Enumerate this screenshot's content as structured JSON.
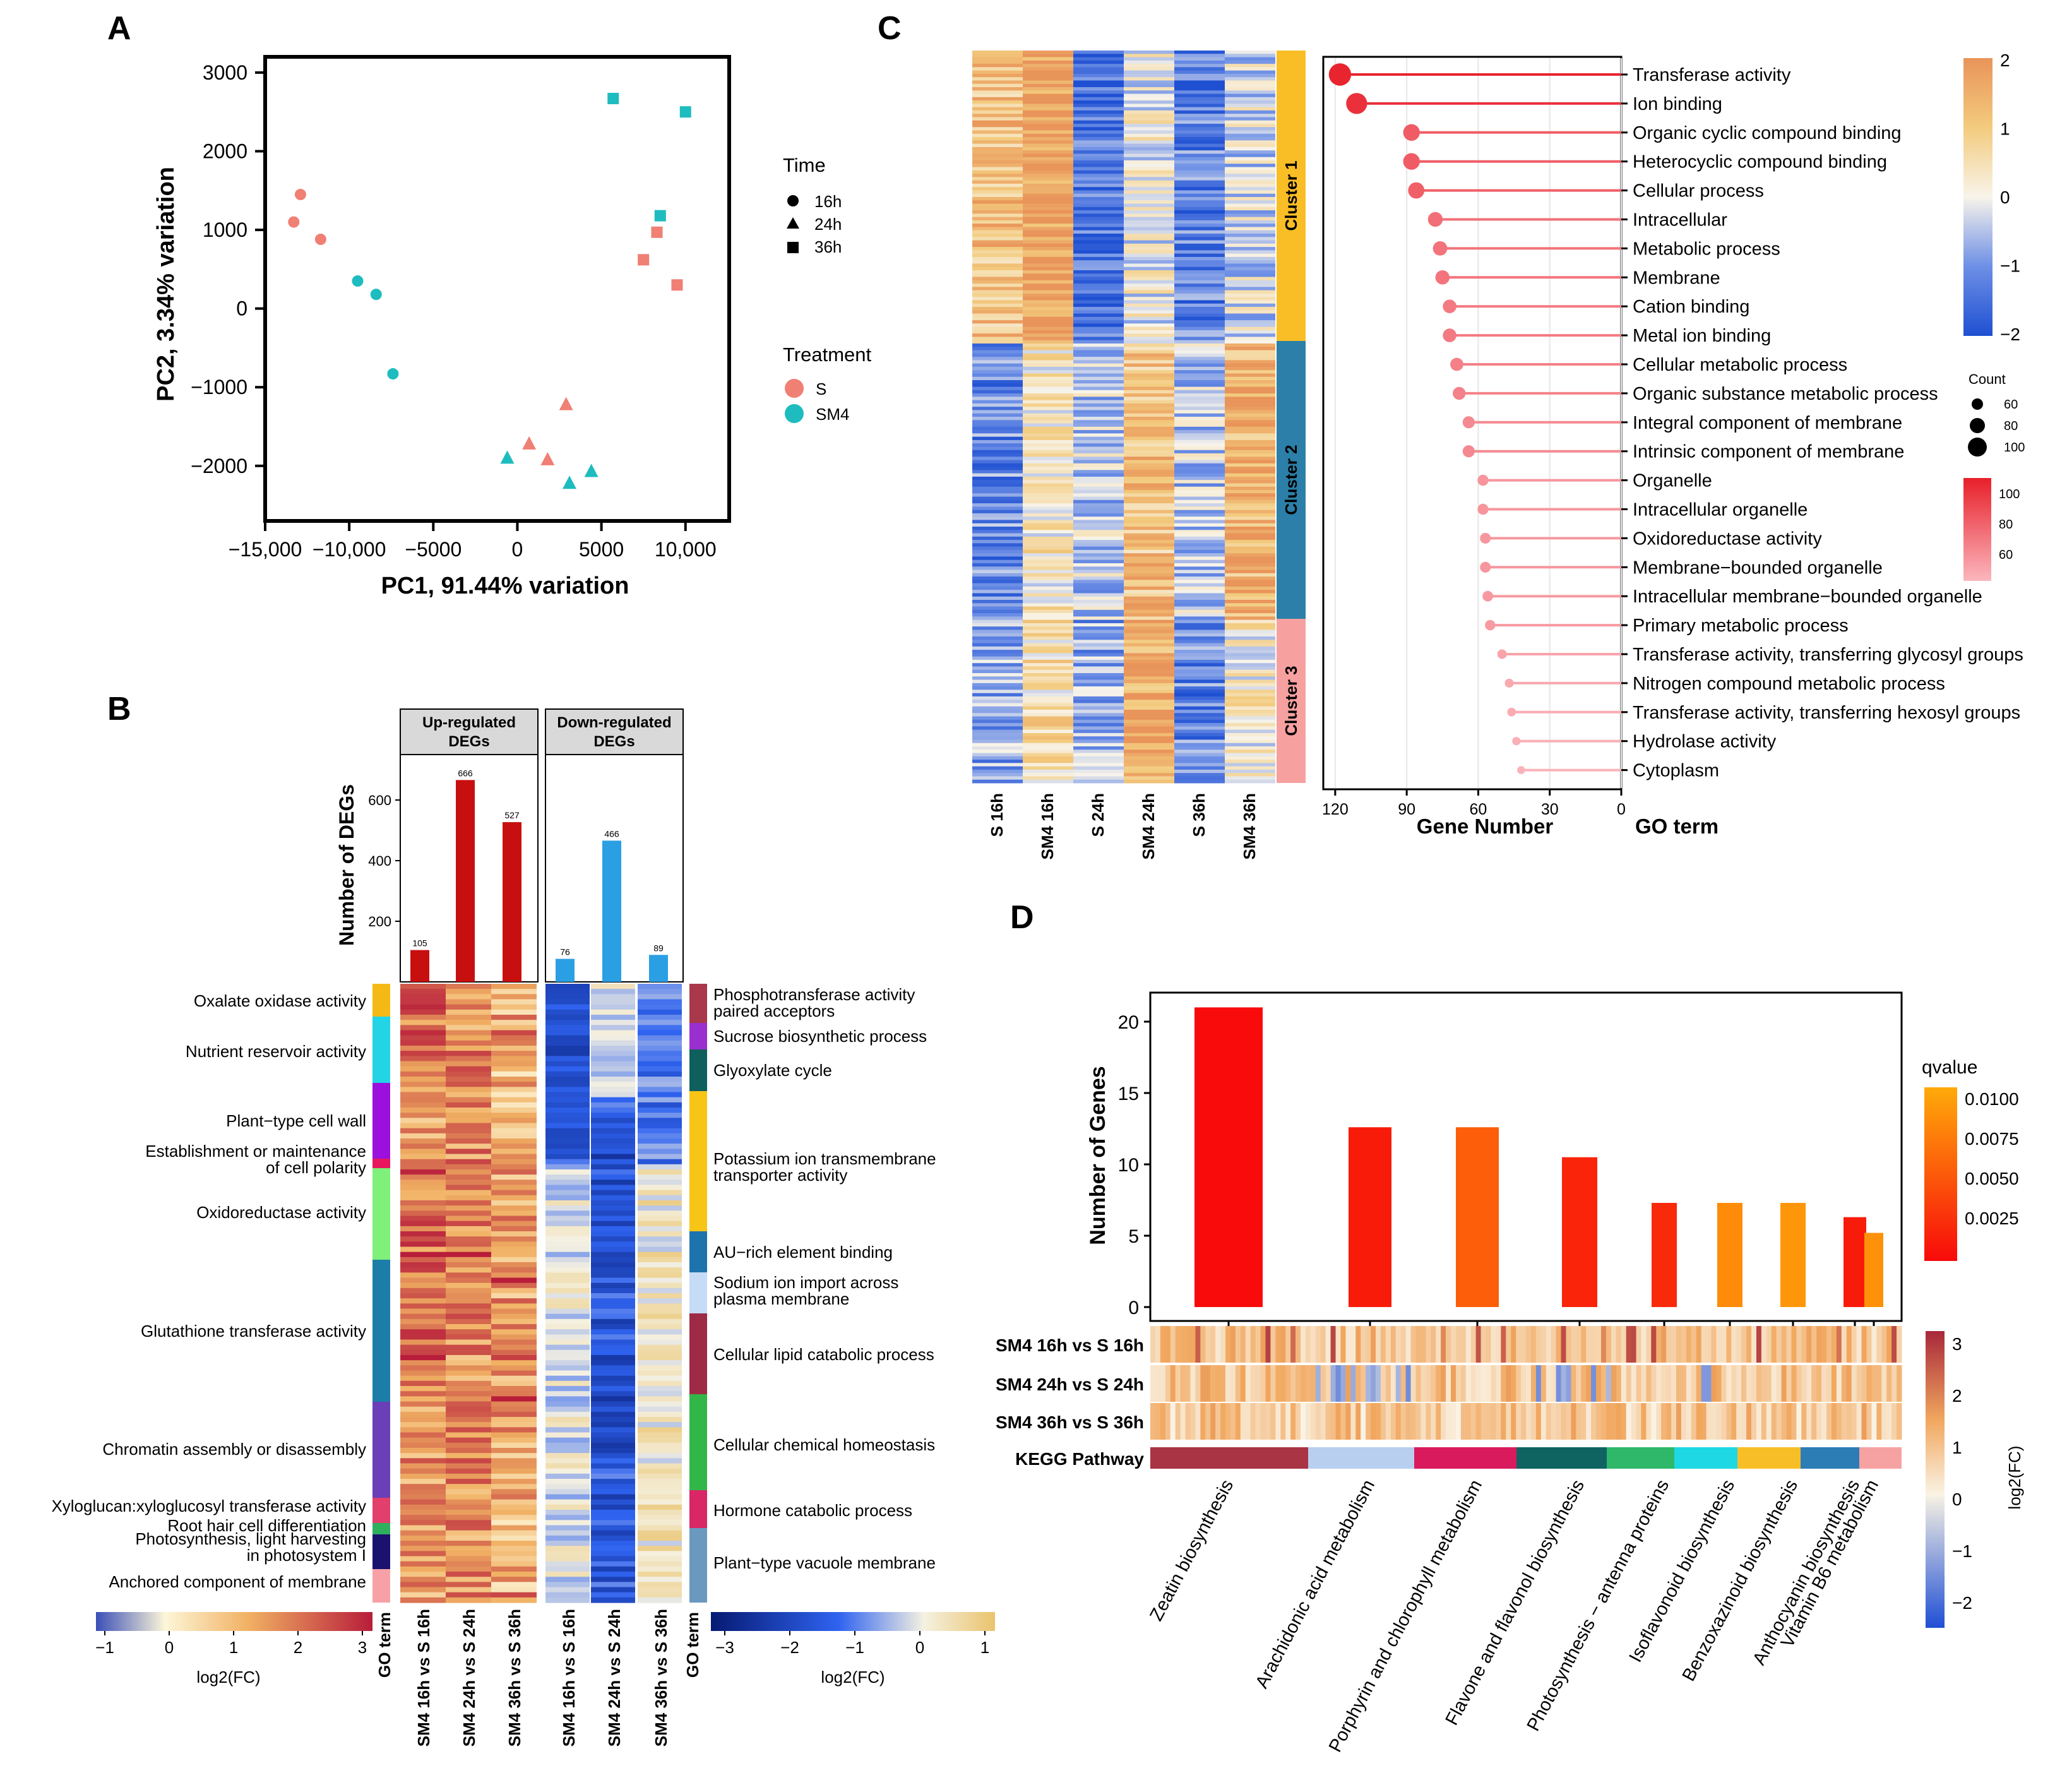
{
  "panels": {
    "a": "A",
    "b": "B",
    "c": "C",
    "d": "D"
  },
  "colors": {
    "S": "#f07f74",
    "SM4": "#1ebcbf",
    "up_bar": "#c80f0f",
    "down_bar": "#2b9fe3",
    "gene_lo": "#fbb1b8",
    "gene_hi": "#e8202a",
    "q_lo": "#f80a0a",
    "q_hi": "#ffa90a"
  },
  "chart_data": [
    {
      "id": "A",
      "type": "scatter",
      "xlabel": "PC1, 91.44% variation",
      "ylabel": "PC2, 3.34% variation",
      "xlim": [
        -15000,
        12600
      ],
      "ylim": [
        -2700,
        3200
      ],
      "xticks": [
        -15000,
        -10000,
        -5000,
        0,
        5000,
        10000
      ],
      "xtick_labels": [
        "−15,000",
        "−10,000",
        "−5000",
        "0",
        "5000",
        "10,000"
      ],
      "yticks": [
        -2000,
        -1000,
        0,
        1000,
        2000,
        3000
      ],
      "ytick_labels": [
        "−2000",
        "−1000",
        "0",
        "1000",
        "2000",
        "3000"
      ],
      "legend": {
        "time_title": "Time",
        "time": [
          {
            "label": "16h",
            "shape": "circle"
          },
          {
            "label": "24h",
            "shape": "triangle"
          },
          {
            "label": "36h",
            "shape": "square"
          }
        ],
        "treatment_title": "Treatment",
        "treatment": [
          {
            "label": "S",
            "color": "#f07f74"
          },
          {
            "label": "SM4",
            "color": "#1ebcbf"
          }
        ]
      },
      "points": [
        {
          "x": -12900,
          "y": 1450,
          "time": "16h",
          "trt": "S"
        },
        {
          "x": -13300,
          "y": 1100,
          "time": "16h",
          "trt": "S"
        },
        {
          "x": -11700,
          "y": 880,
          "time": "16h",
          "trt": "S"
        },
        {
          "x": -9500,
          "y": 350,
          "time": "16h",
          "trt": "SM4"
        },
        {
          "x": -8400,
          "y": 180,
          "time": "16h",
          "trt": "SM4"
        },
        {
          "x": -7400,
          "y": -830,
          "time": "16h",
          "trt": "SM4"
        },
        {
          "x": 2900,
          "y": -1220,
          "time": "24h",
          "trt": "S"
        },
        {
          "x": 700,
          "y": -1720,
          "time": "24h",
          "trt": "S"
        },
        {
          "x": 1800,
          "y": -1920,
          "time": "24h",
          "trt": "S"
        },
        {
          "x": -600,
          "y": -1900,
          "time": "24h",
          "trt": "SM4"
        },
        {
          "x": 4400,
          "y": -2070,
          "time": "24h",
          "trt": "SM4"
        },
        {
          "x": 3100,
          "y": -2220,
          "time": "24h",
          "trt": "SM4"
        },
        {
          "x": 5700,
          "y": 2670,
          "time": "36h",
          "trt": "SM4"
        },
        {
          "x": 10000,
          "y": 2500,
          "time": "36h",
          "trt": "SM4"
        },
        {
          "x": 8500,
          "y": 1180,
          "time": "36h",
          "trt": "SM4"
        },
        {
          "x": 8300,
          "y": 970,
          "time": "36h",
          "trt": "S"
        },
        {
          "x": 7500,
          "y": 620,
          "time": "36h",
          "trt": "S"
        },
        {
          "x": 9500,
          "y": 300,
          "time": "36h",
          "trt": "S"
        }
      ]
    },
    {
      "id": "B",
      "type": "bar",
      "ylabel": "Number of DEGs",
      "ylim": [
        0,
        750
      ],
      "yticks": [
        200,
        400,
        600
      ],
      "groups": [
        {
          "title_line1": "Up-regulated",
          "title_line2": "DEGs",
          "values": [
            105,
            666,
            527
          ],
          "value_labels": [
            "105",
            "666",
            "527"
          ],
          "color": "#c80f0f"
        },
        {
          "title_line1": "Down-regulated",
          "title_line2": "DEGs",
          "values": [
            76,
            466,
            89
          ],
          "value_labels": [
            "76",
            "466",
            "89"
          ],
          "color": "#2b9fe3"
        }
      ],
      "columns": [
        "SM4 16h vs S 16h",
        "SM4 24h vs S 24h",
        "SM4 36h vs S 36h"
      ],
      "go_axis_label": "GO term",
      "go_terms_left": [
        {
          "line1": "Oxalate oxidase activity",
          "line2": "",
          "color": "#f5b915"
        },
        {
          "line1": "Nutrient reservoir activity",
          "line2": "",
          "color": "#22d4e6"
        },
        {
          "line1": "Plant−type cell wall",
          "line2": "",
          "color": "#9b10dc"
        },
        {
          "line1": "Establishment or maintenance",
          "line2": "of cell polarity",
          "color": "#e8185e"
        },
        {
          "line1": "Oxidoreductase activity",
          "line2": "",
          "color": "#7ff07a"
        },
        {
          "line1": "Glutathione transferase activity",
          "line2": "",
          "color": "#1c7ea8"
        },
        {
          "line1": "Chromatin assembly or disassembly",
          "line2": "",
          "color": "#6a3fb8"
        },
        {
          "line1": "Xyloglucan:xyloglucosyl transferase activity",
          "line2": "",
          "color": "#e23f6c"
        },
        {
          "line1": "Root hair cell differentiation",
          "line2": "",
          "color": "#2fb05e"
        },
        {
          "line1": "Photosynthesis, light harvesting",
          "line2": "in photosystem I",
          "color": "#1b1270"
        },
        {
          "line1": "Anchored component of membrane",
          "line2": "",
          "color": "#f7a1a6"
        }
      ],
      "go_terms_right": [
        {
          "line1": "Phosphotransferase activity",
          "line2": "paired acceptors",
          "color": "#a8384a"
        },
        {
          "line1": "Sucrose biosynthetic process",
          "line2": "",
          "color": "#9a2fcf"
        },
        {
          "line1": "Glyoxylate cycle",
          "line2": "",
          "color": "#0f5f5d"
        },
        {
          "line1": "Potassium ion transmembrane",
          "line2": "transporter activity",
          "color": "#f6c515"
        },
        {
          "line1": "AU−rich element binding",
          "line2": "",
          "color": "#1d74ad"
        },
        {
          "line1": "Sodium ion import across",
          "line2": "plasma membrane",
          "color": "#c5dbf6"
        },
        {
          "line1": "Cellular lipid catabolic process",
          "line2": "",
          "color": "#9e2b45"
        },
        {
          "line1": "Cellular chemical homeostasis",
          "line2": "",
          "color": "#33b648"
        },
        {
          "line1": "Hormone catabolic process",
          "line2": "",
          "color": "#d92766"
        },
        {
          "line1": "Plant−type vacuole membrane",
          "line2": "",
          "color": "#6a99c0"
        }
      ],
      "scale_up": {
        "ticks": [
          "−1",
          "0",
          "1",
          "2",
          "3"
        ],
        "label": "log2(FC)"
      },
      "scale_down": {
        "ticks": [
          "−3",
          "−2",
          "−1",
          "0",
          "1"
        ],
        "label": "log2(FC)"
      }
    },
    {
      "id": "C",
      "type": "scatter",
      "heatmap_columns": [
        "S 16h",
        "SM4 16h",
        "S 24h",
        "SM4 24h",
        "S 36h",
        "SM4 36h"
      ],
      "clusters": [
        {
          "label": "Cluster 1",
          "color": "#f9be26"
        },
        {
          "label": "Cluster 2",
          "color": "#2b7fa8"
        },
        {
          "label": "Cluster 3",
          "color": "#f7a0a0"
        }
      ],
      "heat_scale": {
        "ticks": [
          "2",
          "1",
          "0",
          "−1",
          "−2"
        ]
      },
      "count_legend": {
        "title": "Count",
        "values": [
          60,
          80,
          100
        ],
        "labels": [
          "60",
          "80",
          "100"
        ]
      },
      "gene_legend": {
        "labels": [
          "100",
          "80",
          "60"
        ]
      },
      "xlabel": "Gene Number",
      "term_axis_label": "GO term",
      "xticks": [
        120,
        90,
        60,
        30,
        0
      ],
      "xtick_labels": [
        "120",
        "90",
        "60",
        "30",
        "0"
      ],
      "xlim": [
        125,
        0
      ],
      "terms": [
        "Transferase activity",
        "Ion binding",
        "Organic cyclic compound binding",
        "Heterocyclic compound binding",
        "Cellular process",
        "Intracellular",
        "Metabolic process",
        "Membrane",
        "Cation binding",
        "Metal ion binding",
        "Cellular metabolic process",
        "Organic substance metabolic process",
        "Integral component of membrane",
        "Intrinsic component of membrane",
        "Organelle",
        "Intracellular organelle",
        "Oxidoreductase activity",
        "Membrane−bounded organelle",
        "Intracellular membrane−bounded organelle",
        "Primary metabolic process",
        "Transferase activity, transferring glycosyl groups",
        "Nitrogen compound metabolic process",
        "Transferase activity, transferring hexosyl groups",
        "Hydrolase activity",
        "Cytoplasm"
      ],
      "values": [
        118,
        111,
        88,
        88,
        86,
        78,
        76,
        75,
        72,
        72,
        69,
        68,
        64,
        64,
        58,
        58,
        57,
        57,
        56,
        55,
        50,
        47,
        46,
        44,
        42
      ]
    },
    {
      "id": "D",
      "type": "bar",
      "ylabel": "Number of Genes",
      "ylim": [
        0,
        22.5
      ],
      "yticks": [
        0,
        5,
        10,
        15,
        20
      ],
      "ytick_labels": [
        "0",
        "5",
        "10",
        "15",
        "20"
      ],
      "categories": [
        "Zeatin biosynthesis",
        "Arachidonic acid metabolism",
        "Porphyrin and chlorophyll metabolism",
        "Flavone and flavonol biosynthesis",
        "Photosynthesis − antenna proteins",
        "Isoflavonoid biosynthesis",
        "Benzoxazinoid biosynthesis",
        "Anthocyanin biosynthesis",
        "Vitamin B6 metabolism"
      ],
      "values": [
        21,
        12.6,
        12.6,
        10.5,
        7.3,
        7.3,
        7.3,
        6.3,
        5.2
      ],
      "qvalues": [
        0.0001,
        0.0012,
        0.0058,
        0.0018,
        0.0022,
        0.0089,
        0.0096,
        0.0012,
        0.0093
      ],
      "qvalue_title": "qvalue",
      "q_ticks": [
        "0.0100",
        "0.0075",
        "0.0050",
        "0.0025"
      ],
      "heat_rows": [
        "SM4 16h vs S 16h",
        "SM4 24h vs S 24h",
        "SM4 36h vs S 36h"
      ],
      "pathway_row_label": "KEGG Pathway",
      "pathway_colors": [
        "#a83444",
        "#b8cff0",
        "#d91b5e",
        "#0f6462",
        "#2fb86a",
        "#1ed8e4",
        "#f7be27",
        "#2c7db5",
        "#f7a2a2"
      ],
      "logfc_ticks": [
        "3",
        "2",
        "1",
        "0",
        "−1",
        "−2"
      ],
      "logfc_label": "log2(FC)"
    }
  ]
}
